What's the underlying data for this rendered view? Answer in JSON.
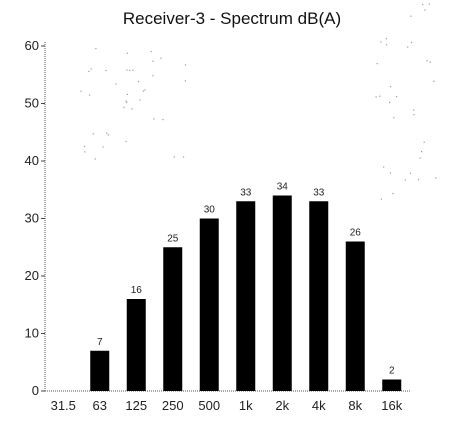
{
  "chart_data": {
    "type": "bar",
    "title": "Receiver-3 - Spectrum dB(A)",
    "xlabel": "",
    "ylabel": "",
    "categories": [
      "31.5",
      "63",
      "125",
      "250",
      "500",
      "1k",
      "2k",
      "4k",
      "8k",
      "16k"
    ],
    "values": [
      0,
      7,
      16,
      25,
      30,
      33,
      34,
      33,
      26,
      2
    ],
    "value_labels": [
      "",
      "7",
      "16",
      "25",
      "30",
      "33",
      "34",
      "33",
      "26",
      "2"
    ],
    "ylim": [
      0,
      60
    ],
    "yticks": [
      "0",
      "10",
      "20",
      "30",
      "40",
      "50",
      "60"
    ],
    "grid": false,
    "bar_color": "#000000"
  }
}
